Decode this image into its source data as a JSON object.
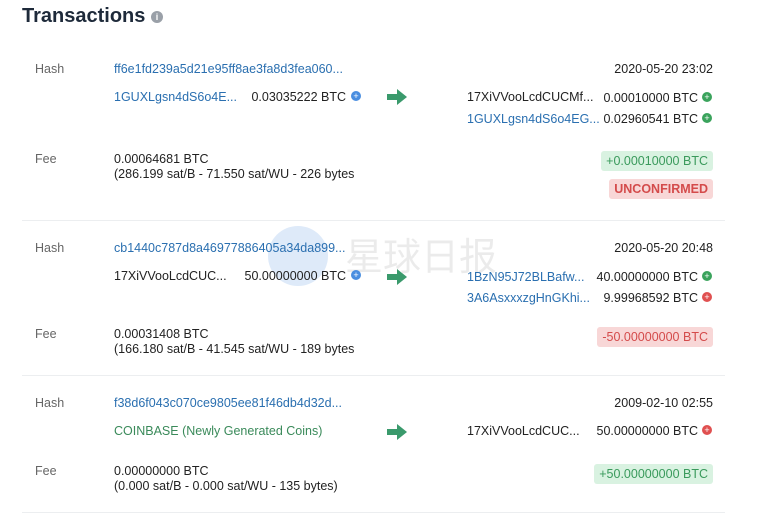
{
  "title": "Transactions",
  "info_icon": "info-icon",
  "labels": {
    "hash": "Hash",
    "fee": "Fee"
  },
  "colors": {
    "link": "#2a6fb0",
    "arrow": "#3a9a6c",
    "unspent": "#3aa35c",
    "spent": "#e05050",
    "input": "#4a8ee0"
  },
  "watermark": "星球日报",
  "transactions": [
    {
      "hash": "ff6e1fd239a5d21e95ff8ae3fa8d3fea060...",
      "date": "2020-05-20 23:02",
      "inputs": [
        {
          "address": "1GUXLgsn4dS6o4E...",
          "amount": "0.03035222 BTC"
        }
      ],
      "outputs": [
        {
          "address": "17XiVVooLcdCUCMf...",
          "amount": "0.00010000 BTC",
          "status": "unspent"
        },
        {
          "address": "1GUXLgsn4dS6o4EG...",
          "amount": "0.02960541 BTC",
          "status": "unspent"
        }
      ],
      "fee": "0.00064681 BTC",
      "fee_detail": "(286.199 sat/B - 71.550 sat/WU - 226 bytes",
      "net": "+0.00010000 BTC",
      "status": "UNCONFIRMED"
    },
    {
      "hash": "cb1440c787d8a46977886405a34da899...",
      "date": "2020-05-20 20:48",
      "inputs": [
        {
          "address": "17XiVVooLcdCUC...",
          "amount": "50.00000000 BTC"
        }
      ],
      "outputs": [
        {
          "address": "1BzN95J72BLBafw...",
          "amount": "40.00000000 BTC",
          "status": "unspent"
        },
        {
          "address": "3A6AsxxxzgHnGKhi...",
          "amount": "9.99968592 BTC",
          "status": "spent"
        }
      ],
      "fee": "0.00031408 BTC",
      "fee_detail": "(166.180 sat/B - 41.545 sat/WU - 189 bytes",
      "net": "-50.00000000 BTC"
    },
    {
      "hash": "f38d6f043c070ce9805ee81f46db4d32d...",
      "date": "2009-02-10 02:55",
      "inputs": [
        {
          "address": "COINBASE (Newly Generated Coins)"
        }
      ],
      "outputs": [
        {
          "address": "17XiVVooLcdCUC...",
          "amount": "50.00000000 BTC",
          "status": "spent"
        }
      ],
      "fee": "0.00000000 BTC",
      "fee_detail": "(0.000 sat/B - 0.000 sat/WU - 135 bytes)",
      "net": "+50.00000000 BTC"
    }
  ]
}
